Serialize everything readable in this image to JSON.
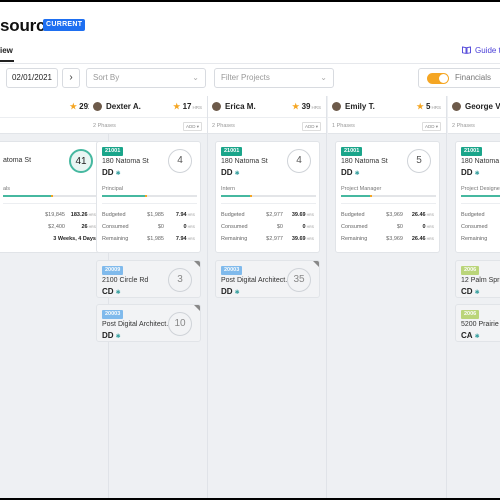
{
  "header": {
    "title": "source",
    "badge": "CURRENT",
    "tab": "iew",
    "guide": "Guide t"
  },
  "toolbar": {
    "date": "02/01/2021",
    "prev": "‹",
    "next": "›",
    "sort_placeholder": "Sort By",
    "filter_placeholder": "Filter Projects",
    "financials_label": "Financials",
    "financials_on": true
  },
  "colors": {
    "accent": "#1e6ff1",
    "teal": "#1aa58a",
    "blue_badge": "#5aa8ea",
    "lime_badge": "#a8cc52",
    "violet_badge": "#a59cf0",
    "toggle": "#f5a623"
  },
  "units": {
    "hrs": "HRS"
  },
  "add_label": "ADD ▾",
  "columns": [
    {
      "name": "",
      "hours": "291",
      "phases": "",
      "cards": [
        {
          "project": "",
          "address": "atoma St",
          "phase": "",
          "count": "41",
          "role": "als",
          "progress": 0.5,
          "fin": {
            "budgeted": {
              "amount": "$19,845",
              "hrs": "183.26"
            },
            "consumed": {
              "amount": "$2,400",
              "hrs": "26"
            },
            "remaining": {
              "label": "3 Weeks, 4 Days"
            }
          }
        }
      ]
    },
    {
      "name": "Dexter A.",
      "hours": "17",
      "phases": "2 Phases",
      "cards": [
        {
          "project": "21001",
          "address": "180 Natoma St",
          "phase": "DD",
          "count": "4",
          "role": "Principal",
          "progress": 0.45,
          "fin": {
            "budgeted": {
              "label": "Budgeted",
              "amount": "$1,985",
              "hrs": "7.94"
            },
            "consumed": {
              "label": "Consumed",
              "amount": "$0",
              "hrs": "0"
            },
            "remaining": {
              "label": "Remaining",
              "amount": "$1,985",
              "hrs": "7.94"
            }
          }
        },
        {
          "project": "20009",
          "address": "2100 Circle Rd",
          "phase": "CD",
          "count": "3"
        },
        {
          "project": "20003",
          "address": "Post Digital Architect...",
          "phase": "DD",
          "count": "10"
        }
      ]
    },
    {
      "name": "Erica M.",
      "hours": "39",
      "phases": "2 Phases",
      "cards": [
        {
          "project": "21001",
          "address": "180 Natoma St",
          "phase": "DD",
          "count": "4",
          "role": "Intern",
          "progress": 0.3,
          "fin": {
            "budgeted": {
              "label": "Budgeted",
              "amount": "$2,977",
              "hrs": "39.69"
            },
            "consumed": {
              "label": "Consumed",
              "amount": "$0",
              "hrs": "0"
            },
            "remaining": {
              "label": "Remaining",
              "amount": "$2,977",
              "hrs": "39.69"
            }
          }
        },
        {
          "project": "20003",
          "address": "Post Digital Architect...",
          "phase": "DD",
          "count": "35"
        }
      ]
    },
    {
      "name": "Emily T.",
      "hours": "5",
      "phases": "1 Phases",
      "cards": [
        {
          "project": "21001",
          "address": "180 Natoma St",
          "phase": "DD",
          "count": "5",
          "role": "Project Manager",
          "progress": 0.3,
          "fin": {
            "budgeted": {
              "label": "Budgeted",
              "amount": "$3,969",
              "hrs": "26.46"
            },
            "consumed": {
              "label": "Consumed",
              "amount": "$0",
              "hrs": "0"
            },
            "remaining": {
              "label": "Remaining",
              "amount": "$3,969",
              "hrs": "26.46"
            }
          }
        }
      ]
    },
    {
      "name": "George V.",
      "hours": "",
      "phases": "2 Phases",
      "cards": [
        {
          "project": "21001",
          "address": "180 Natoma St",
          "phase": "DD",
          "count": "",
          "role": "Project Designer",
          "progress": 0.8,
          "fin": {
            "budgeted": {
              "label": "Budgeted",
              "amount": "",
              "hrs": ""
            },
            "consumed": {
              "label": "Consumed",
              "amount": "",
              "hrs": ""
            },
            "remaining": {
              "label": "Remaining",
              "amount": "",
              "hrs": ""
            }
          }
        },
        {
          "project": "2006",
          "address": "12 Palm Spri",
          "phase": "CD",
          "count": ""
        },
        {
          "project": "2006",
          "address": "5200 Prairie D",
          "phase": "CA",
          "count": ""
        }
      ]
    }
  ]
}
